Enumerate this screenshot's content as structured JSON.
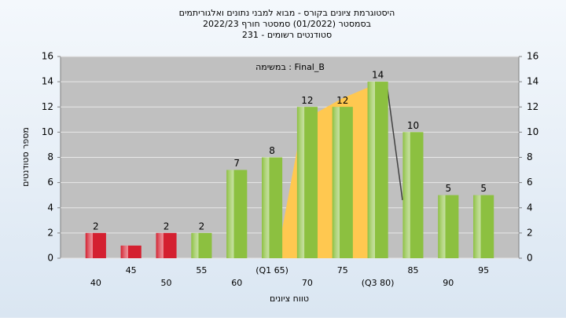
{
  "chart_data": {
    "type": "bar",
    "title": "היסטוגרמת ציונים בקורס - מבוא למבני נתונים ואלגוריתמים",
    "subtitle": "בסמסטר  (01/2022)  סמסטר חורף 2022/23",
    "subtitle2": "231 - סטודנטים רשומים",
    "annotation": "במשימה : Final_B",
    "x_label": "טווח ציונים",
    "y_label": "מספר סטודנטים",
    "categories": [
      "40",
      "45",
      "50",
      "55",
      "60",
      "(Q1 65)",
      "70",
      "75",
      "(Q3 80)",
      "85",
      "90",
      "95"
    ],
    "values": [
      2,
      1,
      2,
      2,
      7,
      8,
      12,
      12,
      14,
      10,
      5,
      5
    ],
    "value_labels": [
      "2",
      null,
      "2",
      "2",
      "7",
      "8",
      "12",
      "12",
      "14",
      "10",
      "5",
      "5"
    ],
    "colors": [
      "#d42030",
      "#d42030",
      "#d42030",
      "#8cc040",
      "#8cc040",
      "#8cc040",
      "#8cc040",
      "#8cc040",
      "#8cc040",
      "#8cc040",
      "#8cc040",
      "#8cc040"
    ],
    "ylim": [
      0,
      16
    ],
    "yticks": [
      0,
      2,
      4,
      6,
      8,
      10,
      12,
      14,
      16
    ],
    "y2lim": [
      0,
      16
    ],
    "y2ticks": [
      0,
      2,
      4,
      6,
      8,
      10,
      12,
      14,
      16
    ],
    "grid": true
  }
}
